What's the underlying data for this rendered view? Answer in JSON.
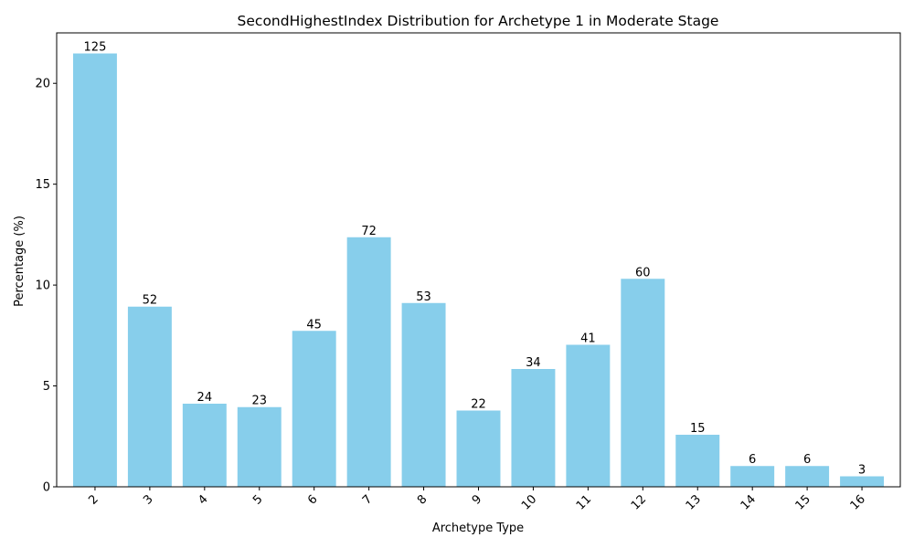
{
  "chart_data": {
    "type": "bar",
    "title": "SecondHighestIndex Distribution for Archetype 1 in Moderate Stage",
    "xlabel": "Archetype Type",
    "ylabel": "Percentage (%)",
    "categories": [
      "2",
      "3",
      "4",
      "5",
      "6",
      "7",
      "8",
      "9",
      "10",
      "11",
      "12",
      "13",
      "14",
      "15",
      "16"
    ],
    "values": [
      21.48,
      8.93,
      4.12,
      3.95,
      7.73,
      12.37,
      9.11,
      3.78,
      5.84,
      7.04,
      10.31,
      2.58,
      1.03,
      1.03,
      0.52
    ],
    "data_labels": [
      "125",
      "52",
      "24",
      "23",
      "45",
      "72",
      "53",
      "22",
      "34",
      "41",
      "60",
      "15",
      "6",
      "6",
      "3"
    ],
    "ylim": [
      0,
      22.5
    ],
    "yticks": [
      0,
      5,
      10,
      15,
      20
    ],
    "bar_color": "#87ceeb",
    "grid": false,
    "legend": "none"
  }
}
